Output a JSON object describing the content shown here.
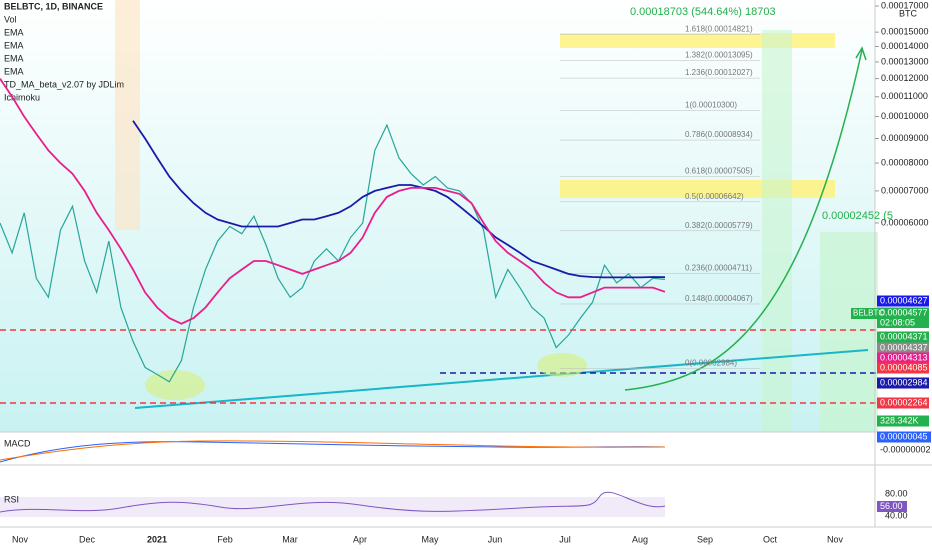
{
  "chart_data": {
    "type": "line",
    "title": "BELBTC, 1D, BINANCE",
    "indicators": [
      "Vol",
      "EMA",
      "EMA",
      "TD_MA_beta_v2.07 by JDLim",
      "Ichimoku"
    ],
    "currency": "BTC",
    "yscale": "log",
    "ylim": [
      2.2e-05,
      0.000175
    ],
    "yticks": [
      {
        "value": 0.00017,
        "label": "0.00017000"
      },
      {
        "value": 0.00015,
        "label": "0.00015000"
      },
      {
        "value": 0.00014,
        "label": "0.00014000"
      },
      {
        "value": 0.00013,
        "label": "0.00013000"
      },
      {
        "value": 0.00012,
        "label": "0.00012000"
      },
      {
        "value": 0.00011,
        "label": "0.00011000"
      },
      {
        "value": 0.0001,
        "label": "0.00010000"
      },
      {
        "value": 9e-05,
        "label": "0.00009000"
      },
      {
        "value": 8e-05,
        "label": "0.00008000"
      },
      {
        "value": 7e-05,
        "label": "0.00007000"
      },
      {
        "value": 6e-05,
        "label": "0.00006000"
      }
    ],
    "xticks": [
      "Nov",
      "Dec",
      "2021",
      "Feb",
      "Mar",
      "Apr",
      "May",
      "Jun",
      "Jul",
      "Aug",
      "Sep",
      "Oct",
      "Nov"
    ],
    "series": [
      {
        "name": "BELBTC",
        "color": "#26a69a",
        "values": [
          6e-05,
          5.2e-05,
          6.3e-05,
          4.6e-05,
          4.2e-05,
          5.8e-05,
          6.5e-05,
          5e-05,
          4.3e-05,
          5.5e-05,
          4e-05,
          3.4e-05,
          3e-05,
          2.9e-05,
          2.8e-05,
          3.1e-05,
          4e-05,
          4.8e-05,
          5.5e-05,
          5.9e-05,
          5.7e-05,
          6.2e-05,
          5.4e-05,
          4.6e-05,
          4.2e-05,
          4.4e-05,
          5e-05,
          5.3e-05,
          5e-05,
          5.6e-05,
          6e-05,
          8.5e-05,
          9.6e-05,
          8.2e-05,
          7.6e-05,
          7.2e-05,
          7.5e-05,
          7.1e-05,
          7e-05,
          6.6e-05,
          5.8e-05,
          4.2e-05,
          4.8e-05,
          4.4e-05,
          4e-05,
          3.8e-05,
          3.3e-05,
          3.5e-05,
          3.8e-05,
          4.1e-05,
          4.9e-05,
          4.5e-05,
          4.7e-05,
          4.4e-05,
          4.6e-05,
          4.577e-05
        ]
      },
      {
        "name": "EMA",
        "color": "#1a1aaa",
        "values": [
          null,
          null,
          null,
          null,
          null,
          null,
          null,
          null,
          null,
          null,
          null,
          9.8e-05,
          9e-05,
          8.2e-05,
          7.5e-05,
          7e-05,
          6.6e-05,
          6.3e-05,
          6.1e-05,
          6e-05,
          5.9e-05,
          5.9e-05,
          5.9e-05,
          5.9e-05,
          6e-05,
          6.1e-05,
          6.1e-05,
          6.2e-05,
          6.3e-05,
          6.5e-05,
          6.8e-05,
          7e-05,
          7.1e-05,
          7.2e-05,
          7.2e-05,
          7.1e-05,
          7e-05,
          6.8e-05,
          6.5e-05,
          6.2e-05,
          5.9e-05,
          5.6e-05,
          5.4e-05,
          5.2e-05,
          5e-05,
          4.9e-05,
          4.8e-05,
          4.7e-05,
          4.65e-05,
          4.63e-05,
          4.62e-05,
          4.62e-05,
          4.62e-05,
          4.62e-05,
          4.63e-05,
          4.627e-05
        ]
      },
      {
        "name": "EMA",
        "color": "#e91e8c",
        "values": [
          0.00012,
          0.00011,
          0.0001,
          9.2e-05,
          8.5e-05,
          8e-05,
          7.6e-05,
          7e-05,
          6.3e-05,
          5.8e-05,
          5.3e-05,
          4.8e-05,
          4.3e-05,
          4e-05,
          3.8e-05,
          3.7e-05,
          3.8e-05,
          4e-05,
          4.3e-05,
          4.6e-05,
          4.8e-05,
          5e-05,
          5e-05,
          4.9e-05,
          4.8e-05,
          4.7e-05,
          4.8e-05,
          4.9e-05,
          5e-05,
          5.2e-05,
          5.6e-05,
          6.3e-05,
          6.8e-05,
          7e-05,
          7.1e-05,
          7.1e-05,
          7.1e-05,
          7e-05,
          6.9e-05,
          6.6e-05,
          6e-05,
          5.5e-05,
          5.2e-05,
          5e-05,
          4.8e-05,
          4.5e-05,
          4.3e-05,
          4.2e-05,
          4.2e-05,
          4.3e-05,
          4.4e-05,
          4.4e-05,
          4.4e-05,
          4.4e-05,
          4.4e-05,
          4.313e-05
        ]
      }
    ],
    "fib_levels": [
      {
        "label": "1.618(0.00014821)",
        "value": 0.00014821
      },
      {
        "label": "1.382(0.00013095)",
        "value": 0.00013095
      },
      {
        "label": "1.236(0.00012027)",
        "value": 0.00012027
      },
      {
        "label": "1(0.00010300)",
        "value": 0.000103
      },
      {
        "label": "0.786(0.00008934)",
        "value": 8.934e-05
      },
      {
        "label": "0.618(0.00007505)",
        "value": 7.505e-05
      },
      {
        "label": "0.5(0.00006642)",
        "value": 6.642e-05
      },
      {
        "label": "0.382(0.00005779)",
        "value": 5.779e-05
      },
      {
        "label": "0.236(0.00004711)",
        "value": 4.711e-05
      },
      {
        "label": "0.148(0.00004067)",
        "value": 4.067e-05
      },
      {
        "label": "0(0.00002984)",
        "value": 2.984e-05
      }
    ],
    "target_annotation": "0.00018703 (544.64%) 18703",
    "second_annotation": "0.00002452 (5",
    "countdown": "02:08:05",
    "price_tags": [
      {
        "label": "0.00004627",
        "color": "#1a1aee"
      },
      {
        "label": "0.00004577",
        "color": "#22b14c"
      },
      {
        "label": "0.00004371",
        "color": "#22b14c"
      },
      {
        "label": "0.00004337",
        "color": "#8a8a8a"
      },
      {
        "label": "0.00004313",
        "color": "#e91e8c"
      },
      {
        "label": "0.00004085",
        "color": "#f23645"
      },
      {
        "label": "0.00002984",
        "color": "#1a1aaa"
      },
      {
        "label": "0.00002264",
        "color": "#f23645"
      },
      {
        "label": "328.342K",
        "color": "#22b14c"
      }
    ],
    "macd": {
      "label": "MACD",
      "tags": [
        {
          "label": "0.00000045",
          "color": "#2962ff"
        },
        {
          "label": "-0.00000002",
          "color": "#ffffff"
        }
      ]
    },
    "rsi": {
      "label": "RSI",
      "ticks": [
        "80.00",
        "40.00"
      ],
      "tag": "56.00"
    }
  }
}
